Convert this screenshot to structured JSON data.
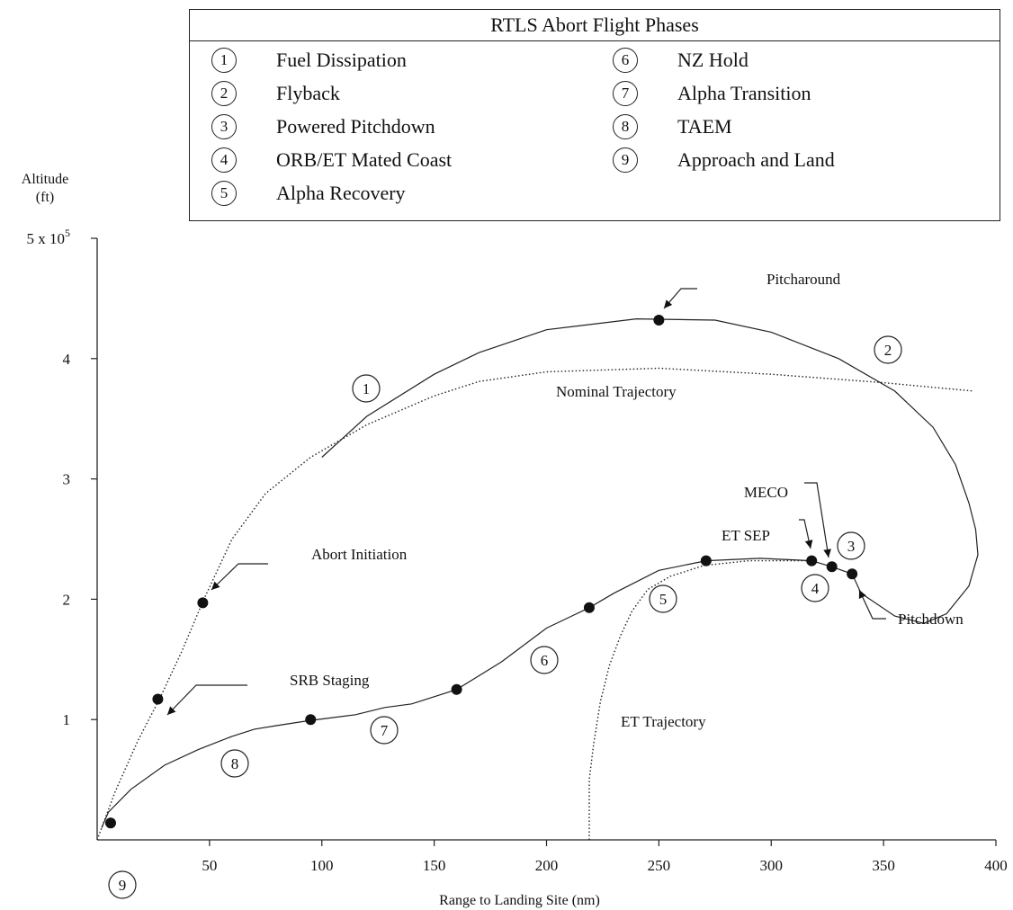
{
  "legend": {
    "title": "RTLS Abort Flight Phases",
    "items": [
      {
        "num": "1",
        "label": "Fuel Dissipation"
      },
      {
        "num": "2",
        "label": "Flyback"
      },
      {
        "num": "3",
        "label": "Powered Pitchdown"
      },
      {
        "num": "4",
        "label": "ORB/ET Mated Coast"
      },
      {
        "num": "5",
        "label": "Alpha Recovery"
      },
      {
        "num": "6",
        "label": "NZ Hold"
      },
      {
        "num": "7",
        "label": "Alpha Transition"
      },
      {
        "num": "8",
        "label": "TAEM"
      },
      {
        "num": "9",
        "label": "Approach and Land"
      }
    ]
  },
  "chart_data": {
    "type": "line",
    "xlabel": "Range to Landing Site (nm)",
    "ylabel_line1": "Altitude",
    "ylabel_line2": "(ft)",
    "y_top_label_base": "5 x 10",
    "y_top_label_exp": "5",
    "xlim": [
      0,
      400
    ],
    "ylim": [
      0,
      500000
    ],
    "x_ticks": [
      50,
      100,
      150,
      200,
      250,
      300,
      350,
      400
    ],
    "y_ticks": [
      {
        "value": 100000,
        "label": "1"
      },
      {
        "value": 200000,
        "label": "2"
      },
      {
        "value": 300000,
        "label": "3"
      },
      {
        "value": 400000,
        "label": "4"
      }
    ],
    "grid": false,
    "series": [
      {
        "style": "solid",
        "x": [
          100,
          120,
          150,
          170,
          200,
          240,
          275,
          300,
          330,
          355,
          372,
          382,
          388,
          391,
          392,
          388,
          378,
          368,
          355,
          340,
          336,
          327,
          318,
          295,
          271,
          250,
          230,
          219,
          200,
          180,
          160,
          140,
          128,
          115,
          94,
          80,
          70,
          60,
          45,
          30,
          15,
          5,
          2
        ],
        "y": [
          318000,
          352000,
          387000,
          405000,
          424000,
          433000,
          432000,
          422000,
          400000,
          373000,
          343000,
          312000,
          280000,
          258000,
          237000,
          211000,
          188000,
          180000,
          186000,
          205000,
          221000,
          227000,
          232000,
          234000,
          232000,
          224000,
          205000,
          193000,
          176000,
          148000,
          125000,
          113000,
          110000,
          104000,
          99000,
          95000,
          92000,
          86000,
          75000,
          62000,
          42000,
          23000,
          10000
        ]
      },
      {
        "name": "Nominal Trajectory",
        "style": "dotted",
        "x": [
          0,
          8,
          18,
          28,
          38,
          47,
          60,
          75,
          95,
          120,
          150,
          170,
          200,
          250,
          300,
          350,
          390
        ],
        "y": [
          0,
          40000,
          82000,
          118000,
          158000,
          198000,
          250000,
          288000,
          318000,
          345000,
          369000,
          381000,
          389000,
          392000,
          387000,
          380000,
          373000
        ]
      },
      {
        "name": "ET Trajectory",
        "style": "dotted",
        "x": [
          219,
          219,
          221,
          224,
          228,
          233,
          238,
          245,
          255,
          270,
          290,
          310,
          318
        ],
        "y": [
          0,
          50000,
          80000,
          115000,
          145000,
          170000,
          190000,
          208000,
          219000,
          228000,
          232000,
          232000,
          232000
        ]
      }
    ],
    "points": [
      {
        "x": 6,
        "y": 14000
      },
      {
        "x": 27,
        "y": 117000
      },
      {
        "x": 47,
        "y": 197000
      },
      {
        "x": 95,
        "y": 100000
      },
      {
        "x": 160,
        "y": 125000
      },
      {
        "x": 219,
        "y": 193000
      },
      {
        "x": 271,
        "y": 232000
      },
      {
        "x": 318,
        "y": 232000
      },
      {
        "x": 327,
        "y": 227000
      },
      {
        "x": 336,
        "y": 221000
      },
      {
        "x": 250,
        "y": 432000
      }
    ],
    "annotations": [
      {
        "text": "Pitcharound"
      },
      {
        "text": "Nominal Trajectory"
      },
      {
        "text": "Abort Initiation"
      },
      {
        "text": "SRB Staging"
      },
      {
        "text": "MECO"
      },
      {
        "text": "ET SEP"
      },
      {
        "text": "Pitchdown"
      },
      {
        "text": "ET Trajectory"
      }
    ],
    "phase_markers": [
      "1",
      "2",
      "3",
      "4",
      "5",
      "6",
      "7",
      "8",
      "9"
    ]
  }
}
